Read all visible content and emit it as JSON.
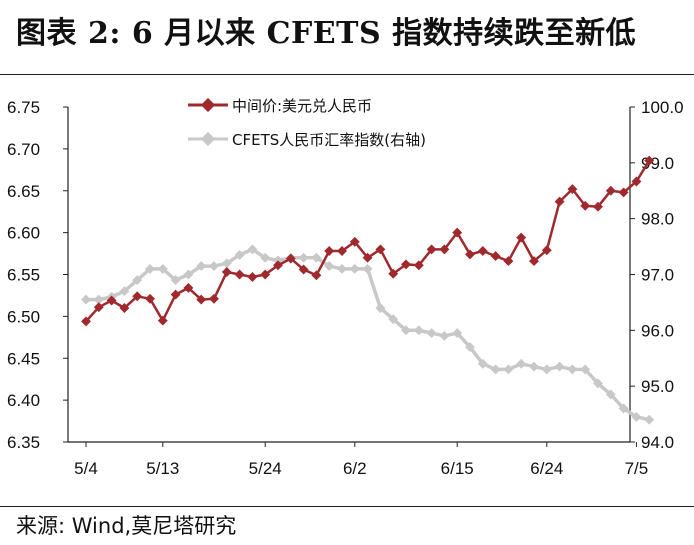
{
  "page": {
    "title": "图表 2:  6 月以来 CFETS 指数持续跌至新低",
    "source": "来源: Wind,莫尼塔研究"
  },
  "colors": {
    "usdcny": "#A0292E",
    "cfets": "#C8C8C8",
    "axis": "#222222"
  },
  "chart_data": {
    "type": "line",
    "x_tick_labels": [
      "5/4",
      "5/13",
      "5/24",
      "6/2",
      "6/15",
      "6/24",
      "7/5"
    ],
    "x_tick_index": [
      0,
      6,
      14,
      21,
      29,
      36,
      43
    ],
    "y_left": {
      "ticks": [
        "6.75",
        "6.70",
        "6.65",
        "6.60",
        "6.55",
        "6.50",
        "6.45",
        "6.40",
        "6.35"
      ],
      "range": [
        6.35,
        6.75
      ]
    },
    "y_right": {
      "ticks": [
        "100.0",
        "99.0",
        "98.0",
        "97.0",
        "96.0",
        "95.0",
        "94.0"
      ],
      "range": [
        94.0,
        100.0
      ]
    },
    "legend_position": "top-center",
    "grid": false,
    "series": [
      {
        "name": "中间价:美元兑人民币",
        "axis": "left",
        "marker": "diamond",
        "values": [
          6.494,
          6.511,
          6.519,
          6.51,
          6.524,
          6.521,
          6.495,
          6.526,
          6.534,
          6.52,
          6.521,
          6.553,
          6.55,
          6.547,
          6.55,
          6.561,
          6.569,
          6.556,
          6.549,
          6.578,
          6.578,
          6.589,
          6.57,
          6.58,
          6.551,
          6.562,
          6.561,
          6.58,
          6.58,
          6.6,
          6.574,
          6.578,
          6.572,
          6.566,
          6.594,
          6.566,
          6.579,
          6.637,
          6.652,
          6.632,
          6.631,
          6.65,
          6.648,
          6.661,
          6.686
        ]
      },
      {
        "name": "CFETS人民币汇率指数(右轴)",
        "axis": "right",
        "marker": "diamond",
        "values": [
          96.55,
          96.55,
          96.6,
          96.7,
          96.9,
          97.1,
          97.1,
          96.9,
          97.0,
          97.15,
          97.15,
          97.2,
          97.35,
          97.45,
          97.3,
          97.25,
          97.3,
          97.3,
          97.3,
          97.15,
          97.1,
          97.1,
          97.1,
          96.4,
          96.2,
          96.0,
          96.0,
          95.95,
          95.9,
          95.95,
          95.7,
          95.4,
          95.3,
          95.3,
          95.4,
          95.35,
          95.3,
          95.35,
          95.3,
          95.3,
          95.05,
          94.85,
          94.6,
          94.45,
          94.4
        ]
      }
    ]
  }
}
